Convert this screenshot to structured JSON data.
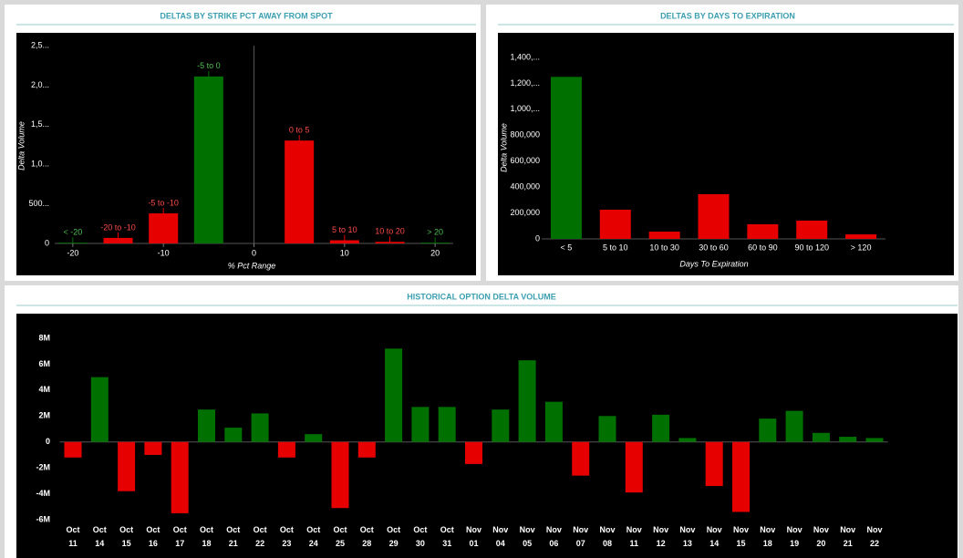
{
  "chart_data": [
    {
      "type": "bar",
      "title": "DELTAS BY STRIKE PCT AWAY FROM SPOT",
      "x_numeric": true,
      "categories": [
        "< -20",
        "-20 to -10",
        "-5 to -10",
        "-5 to 0",
        "0 to 5",
        "5 to 10",
        "10 to 20",
        "> 20"
      ],
      "x": [
        -20,
        -15,
        -10,
        -5,
        5,
        10,
        15,
        20
      ],
      "values": [
        10,
        70,
        380,
        2110,
        1300,
        40,
        20,
        10
      ],
      "colors": [
        "#007000",
        "#e60000",
        "#e60000",
        "#007000",
        "#e60000",
        "#e60000",
        "#e60000",
        "#007000"
      ],
      "category_labels_on_bars": true,
      "zero_line": true,
      "xlim": [
        -22,
        22
      ],
      "xticks": [
        -20,
        -10,
        0,
        10,
        20
      ],
      "ylim": [
        0,
        2500
      ],
      "yticks": [
        0,
        {
          "value": 500,
          "label": "500..."
        },
        {
          "value": 1000,
          "label": "1,0..."
        },
        {
          "value": 1500,
          "label": "1,5..."
        },
        {
          "value": 2000,
          "label": "2,0..."
        },
        {
          "value": 2500,
          "label": "2,5..."
        }
      ],
      "ylabel": "Delta Volume",
      "xlabel": "% Pct Range"
    },
    {
      "type": "bar",
      "title": "DELTAS BY DAYS TO EXPIRATION",
      "categories": [
        "< 5",
        "5 to 10",
        "10 to 30",
        "30 to 60",
        "60 to 90",
        "90 to 120",
        "> 120"
      ],
      "values": [
        1250000,
        225000,
        56000,
        345000,
        113000,
        141000,
        35000
      ],
      "colors": [
        "#007000",
        "#e60000",
        "#e60000",
        "#e60000",
        "#e60000",
        "#e60000",
        "#e60000"
      ],
      "ylim": [
        0,
        1400000
      ],
      "yticks": [
        0,
        {
          "value": 200000,
          "label": "200,000"
        },
        {
          "value": 400000,
          "label": "400,000"
        },
        {
          "value": 600000,
          "label": "600,000"
        },
        {
          "value": 800000,
          "label": "800,000"
        },
        {
          "value": 1000000,
          "label": "1,000,..."
        },
        {
          "value": 1200000,
          "label": "1,200,..."
        },
        {
          "value": 1400000,
          "label": "1,400,..."
        }
      ],
      "ylabel": "Delta Volume",
      "xlabel": "Days To Expiration"
    },
    {
      "type": "bar",
      "title": "HISTORICAL OPTION DELTA VOLUME",
      "categories": [
        "Oct 11",
        "Oct 14",
        "Oct 15",
        "Oct 16",
        "Oct 17",
        "Oct 18",
        "Oct 21",
        "Oct 22",
        "Oct 23",
        "Oct 24",
        "Oct 25",
        "Oct 28",
        "Oct 29",
        "Oct 30",
        "Oct 31",
        "Nov 01",
        "Nov 04",
        "Nov 05",
        "Nov 06",
        "Nov 07",
        "Nov 08",
        "Nov 11",
        "Nov 12",
        "Nov 13",
        "Nov 14",
        "Nov 15",
        "Nov 18",
        "Nov 19",
        "Nov 20",
        "Nov 21",
        "Nov 22"
      ],
      "values": [
        -1200000,
        5000000,
        -3800000,
        -1000000,
        -5500000,
        2500000,
        1100000,
        2200000,
        -1200000,
        600000,
        -5100000,
        -1200000,
        7200000,
        2700000,
        2700000,
        -1700000,
        2500000,
        6300000,
        3100000,
        -2600000,
        2000000,
        -3900000,
        2100000,
        300000,
        -3400000,
        -5400000,
        1800000,
        2400000,
        700000,
        400000,
        300000
      ],
      "color_positive": "#007000",
      "color_negative": "#e60000",
      "ylim": [
        -6000000,
        8000000
      ],
      "yticks": [
        {
          "value": -6000000,
          "label": "-6M"
        },
        {
          "value": -4000000,
          "label": "-4M"
        },
        {
          "value": -2000000,
          "label": "-2M"
        },
        0,
        {
          "value": 2000000,
          "label": "2M"
        },
        {
          "value": 4000000,
          "label": "4M"
        },
        {
          "value": 6000000,
          "label": "6M"
        },
        {
          "value": 8000000,
          "label": "8M"
        }
      ]
    }
  ]
}
